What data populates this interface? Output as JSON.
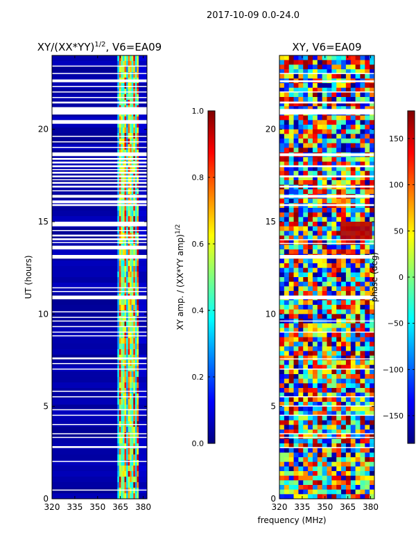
{
  "figure": {
    "suptitle": "2017-10-09 0.0-24.0",
    "shared_xlabel": "frequency (MHz)"
  },
  "chart_data": [
    {
      "type": "heatmap",
      "title_prefix": "XY/(XX*YY)",
      "title_exponent": "1/2",
      "title_suffix": ", V6=EA09",
      "xlabel": "",
      "ylabel": "UT (hours)",
      "xlim": [
        320,
        382.5
      ],
      "ylim": [
        0,
        24
      ],
      "x_ticks": [
        320,
        335,
        350,
        365,
        380
      ],
      "y_ticks": [
        0,
        5,
        10,
        15,
        20
      ],
      "colorbar": {
        "label_main": "XY amp. / (XX*YY amp)",
        "label_exponent": "1/2",
        "range": [
          0.0,
          1.0
        ],
        "ticks": [
          "0.0",
          "0.2",
          "0.4",
          "0.6",
          "0.8",
          "1.0"
        ],
        "colormap": "jet"
      },
      "colormap_stops": [
        "#00007f",
        "#0000ff",
        "#007fff",
        "#00ffff",
        "#7fff7f",
        "#ffff00",
        "#ff7f00",
        "#ff0000",
        "#7f0000"
      ],
      "value_summary": {
        "background_value": 0.05,
        "active_frequency_band_mhz": [
          363,
          377
        ],
        "active_band_values": [
          0.2,
          0.9
        ]
      },
      "blank_time_ranges_hours": [
        [
          0.45,
          0.5
        ],
        [
          2.0,
          2.05
        ],
        [
          2.75,
          2.85
        ],
        [
          3.3,
          3.35
        ],
        [
          3.5,
          3.55
        ],
        [
          4.0,
          4.05
        ],
        [
          4.5,
          4.55
        ],
        [
          4.8,
          4.85
        ],
        [
          5.5,
          5.55
        ],
        [
          5.8,
          5.85
        ],
        [
          7.0,
          7.05
        ],
        [
          7.3,
          7.35
        ],
        [
          7.55,
          7.65
        ],
        [
          8.8,
          8.85
        ],
        [
          9.0,
          9.05
        ],
        [
          9.3,
          9.35
        ],
        [
          9.6,
          9.65
        ],
        [
          9.8,
          9.85
        ],
        [
          10.1,
          10.15
        ],
        [
          10.8,
          11.0
        ],
        [
          11.2,
          11.25
        ],
        [
          11.4,
          11.45
        ],
        [
          13.0,
          13.2
        ],
        [
          13.5,
          13.7
        ],
        [
          13.85,
          13.9
        ],
        [
          14.0,
          14.1
        ],
        [
          14.2,
          14.3
        ],
        [
          14.5,
          14.55
        ],
        [
          14.75,
          15.0
        ],
        [
          15.85,
          15.95
        ],
        [
          16.0,
          16.15
        ],
        [
          16.3,
          16.45
        ],
        [
          16.65,
          16.7
        ],
        [
          16.85,
          16.95
        ],
        [
          17.05,
          17.15
        ],
        [
          17.25,
          17.3
        ],
        [
          17.4,
          17.5
        ],
        [
          17.6,
          17.7
        ],
        [
          17.8,
          17.85
        ],
        [
          17.95,
          18.05
        ],
        [
          18.15,
          18.25
        ],
        [
          18.35,
          18.45
        ],
        [
          18.55,
          18.75
        ],
        [
          19.0,
          19.05
        ],
        [
          19.3,
          19.35
        ],
        [
          19.6,
          19.65
        ],
        [
          20.3,
          20.5
        ],
        [
          20.8,
          21.2
        ],
        [
          21.4,
          21.5
        ],
        [
          21.7,
          21.75
        ],
        [
          22.0,
          22.05
        ],
        [
          22.3,
          22.35
        ],
        [
          22.55,
          22.7
        ],
        [
          23.0,
          23.05
        ],
        [
          23.4,
          23.45
        ]
      ]
    },
    {
      "type": "heatmap",
      "title": "XY, V6=EA09",
      "xlabel": "",
      "ylabel": "",
      "xlim": [
        320,
        382.5
      ],
      "ylim": [
        0,
        24
      ],
      "x_ticks": [
        320,
        335,
        350,
        365,
        380
      ],
      "y_ticks": [
        0,
        5,
        10,
        15,
        20
      ],
      "colorbar": {
        "label": "phase (deg)",
        "range": [
          -180,
          180
        ],
        "ticks": [
          "−150",
          "−100",
          "−50",
          "0",
          "50",
          "100",
          "150"
        ],
        "colormap": "jet"
      },
      "colormap_stops": [
        "#00007f",
        "#0000ff",
        "#007fff",
        "#00ffff",
        "#7fff7f",
        "#ffff00",
        "#ff7f00",
        "#ff0000",
        "#7f0000"
      ],
      "value_summary": {
        "range_deg": [
          -180,
          180
        ],
        "red_block_time_hours": [
          14.0,
          15.0
        ],
        "red_block_frequency_mhz": [
          360,
          381
        ],
        "red_block_value_deg": 160
      },
      "blank_time_ranges_hours": [
        [
          2.75,
          2.8
        ],
        [
          3.3,
          3.35
        ],
        [
          3.5,
          3.55
        ],
        [
          4.5,
          4.55
        ],
        [
          5.0,
          5.05
        ],
        [
          5.5,
          5.55
        ],
        [
          7.0,
          7.05
        ],
        [
          7.55,
          7.6
        ],
        [
          9.0,
          9.05
        ],
        [
          9.6,
          9.65
        ],
        [
          10.8,
          11.0
        ],
        [
          13.0,
          13.2
        ],
        [
          13.8,
          13.85
        ],
        [
          14.0,
          14.05
        ],
        [
          15.85,
          15.95
        ],
        [
          16.3,
          16.45
        ],
        [
          16.85,
          16.95
        ],
        [
          17.4,
          17.5
        ],
        [
          17.95,
          18.05
        ],
        [
          18.55,
          18.7
        ],
        [
          20.8,
          21.1
        ],
        [
          21.4,
          21.5
        ],
        [
          22.0,
          22.05
        ],
        [
          22.55,
          22.65
        ],
        [
          23.0,
          23.05
        ]
      ]
    }
  ]
}
